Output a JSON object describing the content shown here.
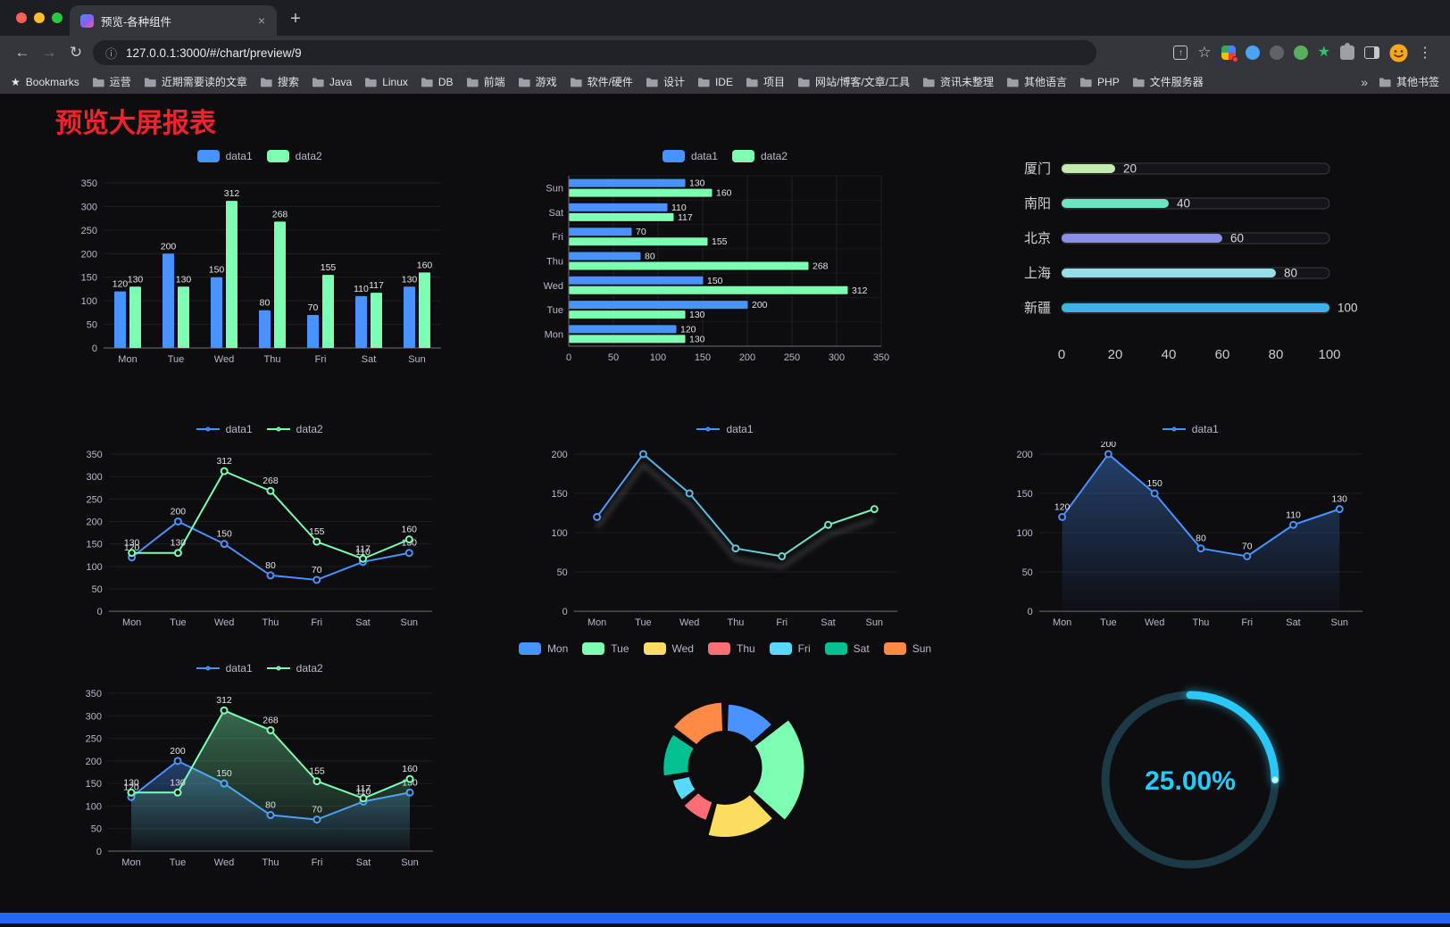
{
  "browser": {
    "traffic_lights": [
      "#ff5f57",
      "#febc2e",
      "#28c840"
    ],
    "tab": {
      "title": "预览-各种组件",
      "close_icon": "×"
    },
    "new_tab_icon": "+",
    "toolbar": {
      "back_icon": "←",
      "forward_icon": "→",
      "reload_icon": "↻",
      "info_icon": "ⓘ",
      "url": "127.0.0.1:3000/#/chart/preview/9",
      "share_icon": "↑",
      "star_icon": "☆",
      "menu_icon": "⋮",
      "extension_icons": [
        "grid-extension",
        "drop-extension",
        "dark-circle-extension",
        "green-circle-extension",
        "green-star-extension",
        "puzzle-extensions",
        "sidebar-toggle",
        "profile-avatar"
      ]
    },
    "bookmarks_bar": {
      "star_icon": "★",
      "first": "Bookmarks",
      "items": [
        "运营",
        "近期需要读的文章",
        "搜索",
        "Java",
        "Linux",
        "DB",
        "前端",
        "游戏",
        "软件/硬件",
        "设计",
        "IDE",
        "项目",
        "网站/博客/文章/工具",
        "资讯未整理",
        "其他语言",
        "PHP",
        "文件服务器"
      ],
      "overflow": "»",
      "other": "其他书签"
    }
  },
  "page": {
    "title": "预览大屏报表",
    "title_color": "#f5222d",
    "background": "#0d0d0f",
    "footer_color": "#2468f2"
  },
  "chart_data": [
    {
      "id": "grouped-bar",
      "type": "bar",
      "legend": [
        "data1",
        "data2"
      ],
      "categories": [
        "Mon",
        "Tue",
        "Wed",
        "Thu",
        "Fri",
        "Sat",
        "Sun"
      ],
      "series": [
        {
          "name": "data1",
          "color": "#4992ff",
          "values": [
            120,
            200,
            150,
            80,
            70,
            110,
            130
          ]
        },
        {
          "name": "data2",
          "color": "#7cffb2",
          "values": [
            130,
            130,
            312,
            268,
            155,
            117,
            160
          ]
        }
      ],
      "ylim": [
        0,
        350
      ],
      "yticks": [
        0,
        50,
        100,
        150,
        200,
        250,
        300,
        350
      ],
      "labels": true
    },
    {
      "id": "horizontal-bar",
      "type": "bar",
      "orientation": "horizontal",
      "legend": [
        "data1",
        "data2"
      ],
      "categories": [
        "Mon",
        "Tue",
        "Wed",
        "Thu",
        "Fri",
        "Sat",
        "Sun"
      ],
      "series": [
        {
          "name": "data1",
          "color": "#4992ff",
          "values": [
            120,
            200,
            150,
            80,
            70,
            110,
            130
          ]
        },
        {
          "name": "data2",
          "color": "#7cffb2",
          "values": [
            130,
            130,
            312,
            268,
            155,
            117,
            160
          ]
        }
      ],
      "xlim": [
        0,
        350
      ],
      "xticks": [
        0,
        50,
        100,
        150,
        200,
        250,
        300,
        350
      ],
      "labels": true
    },
    {
      "id": "city-progress",
      "type": "bar",
      "variant": "progress",
      "max": 100,
      "xticks": [
        0,
        20,
        40,
        60,
        80,
        100
      ],
      "rows": [
        {
          "label": "厦门",
          "value": 20,
          "color": "#c4ebad"
        },
        {
          "label": "南阳",
          "value": 40,
          "color": "#6be6c1"
        },
        {
          "label": "北京",
          "value": 60,
          "color": "#8a8fe8"
        },
        {
          "label": "上海",
          "value": 80,
          "color": "#96dee8"
        },
        {
          "label": "新疆",
          "value": 100,
          "color": "#3fb1e3"
        }
      ]
    },
    {
      "id": "line-two-series",
      "type": "line",
      "legend": [
        "data1",
        "data2"
      ],
      "categories": [
        "Mon",
        "Tue",
        "Wed",
        "Thu",
        "Fri",
        "Sat",
        "Sun"
      ],
      "series": [
        {
          "name": "data1",
          "color": "#4992ff",
          "values": [
            120,
            200,
            150,
            80,
            70,
            110,
            130
          ]
        },
        {
          "name": "data2",
          "color": "#7cffb2",
          "values": [
            130,
            130,
            312,
            268,
            155,
            117,
            160
          ]
        }
      ],
      "ylim": [
        0,
        350
      ],
      "yticks": [
        0,
        50,
        100,
        150,
        200,
        250,
        300,
        350
      ],
      "labels": true
    },
    {
      "id": "line-gradient",
      "type": "line",
      "variant": "gradient",
      "shadow": true,
      "legend": [
        "data1"
      ],
      "categories": [
        "Mon",
        "Tue",
        "Wed",
        "Thu",
        "Fri",
        "Sat",
        "Sun"
      ],
      "series": [
        {
          "name": "data1",
          "colors": [
            "#4992ff",
            "#7cffb2"
          ],
          "values": [
            120,
            200,
            150,
            80,
            70,
            110,
            130
          ]
        }
      ],
      "ylim": [
        0,
        200
      ],
      "yticks": [
        0,
        50,
        100,
        150,
        200
      ],
      "labels": false
    },
    {
      "id": "area-single",
      "type": "area",
      "area": true,
      "legend": [
        "data1"
      ],
      "categories": [
        "Mon",
        "Tue",
        "Wed",
        "Thu",
        "Fri",
        "Sat",
        "Sun"
      ],
      "series": [
        {
          "name": "data1",
          "color": "#4992ff",
          "values": [
            120,
            200,
            150,
            80,
            70,
            110,
            130
          ]
        }
      ],
      "ylim": [
        0,
        200
      ],
      "yticks": [
        0,
        50,
        100,
        150,
        200
      ],
      "labels": true
    },
    {
      "id": "area-two-series",
      "type": "area",
      "area": true,
      "legend": [
        "data1",
        "data2"
      ],
      "categories": [
        "Mon",
        "Tue",
        "Wed",
        "Thu",
        "Fri",
        "Sat",
        "Sun"
      ],
      "series": [
        {
          "name": "data1",
          "color": "#4992ff",
          "values": [
            120,
            200,
            150,
            80,
            70,
            110,
            130
          ]
        },
        {
          "name": "data2",
          "color": "#7cffb2",
          "values": [
            130,
            130,
            312,
            268,
            155,
            117,
            160
          ]
        }
      ],
      "ylim": [
        0,
        350
      ],
      "yticks": [
        0,
        50,
        100,
        150,
        200,
        250,
        300,
        350
      ],
      "labels": true
    },
    {
      "id": "rose-pie",
      "type": "pie",
      "variant": "rose",
      "legend": [
        "Mon",
        "Tue",
        "Wed",
        "Thu",
        "Fri",
        "Sat",
        "Sun"
      ],
      "values": [
        120,
        200,
        150,
        80,
        70,
        110,
        130
      ],
      "colors": [
        "#4992ff",
        "#7cffb2",
        "#fddd60",
        "#ff6e76",
        "#58d9f9",
        "#05c091",
        "#ff8a45"
      ]
    },
    {
      "id": "gauge",
      "type": "pie",
      "variant": "gauge",
      "value": 25,
      "label": "25.00%",
      "color": "#2ac8f7",
      "track": "#1b3a46"
    }
  ]
}
